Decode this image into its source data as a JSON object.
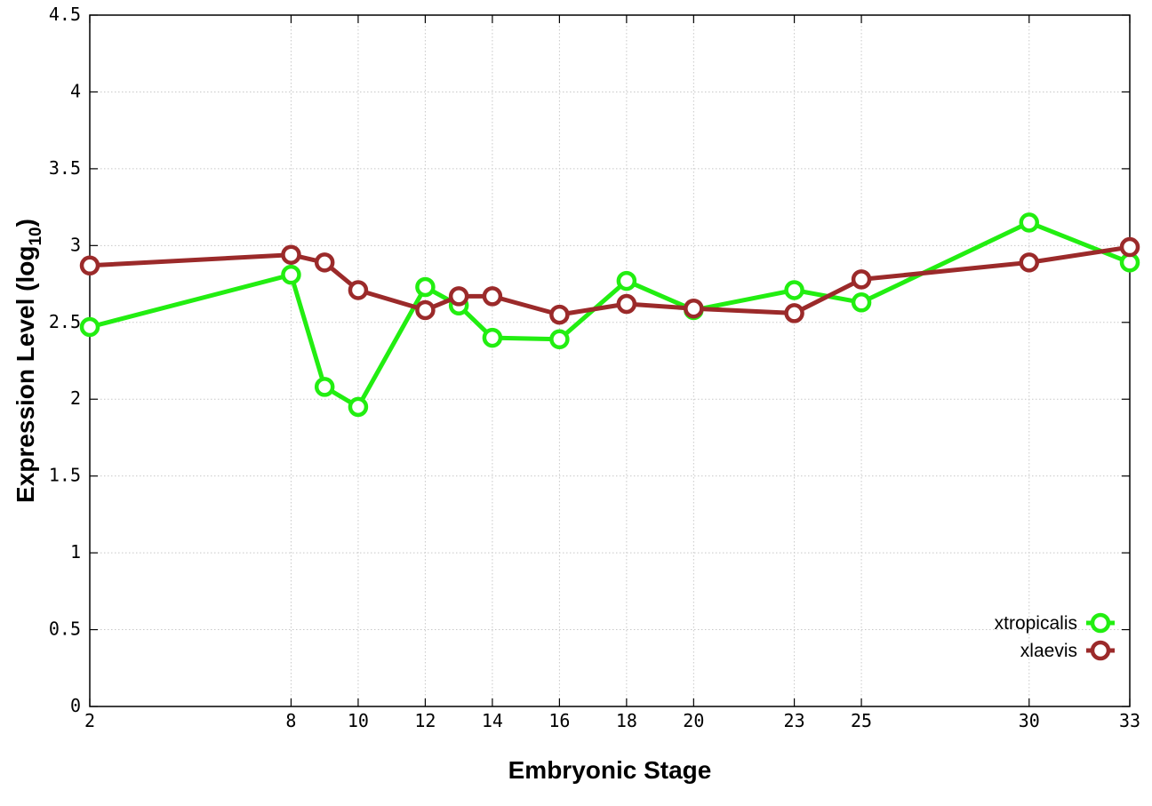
{
  "chart_data": {
    "type": "line",
    "xlabel": "Embryonic Stage",
    "ylabel": "Expression Level (log",
    "ylabel_sub": "10",
    "ylabel_close": ")",
    "x": [
      2,
      8,
      9,
      10,
      12,
      13,
      14,
      16,
      18,
      20,
      23,
      25,
      30,
      33
    ],
    "x_ticks": [
      "2",
      "8",
      "10",
      "12",
      "14",
      "16",
      "18",
      "20",
      "23",
      "25",
      "30",
      "33"
    ],
    "x_tick_values": [
      2,
      8,
      10,
      12,
      14,
      16,
      18,
      20,
      23,
      25,
      30,
      33
    ],
    "xlim": [
      2,
      33
    ],
    "ylim": [
      0,
      4.5
    ],
    "y_ticks": [
      "0",
      "0.5",
      "1",
      "1.5",
      "2",
      "2.5",
      "3",
      "3.5",
      "4",
      "4.5"
    ],
    "y_tick_values": [
      0,
      0.5,
      1,
      1.5,
      2,
      2.5,
      3,
      3.5,
      4,
      4.5
    ],
    "grid": true,
    "legend_position": "bottom-right",
    "series": [
      {
        "name": "xtropicalis",
        "color": "#22ee11",
        "values": [
          2.47,
          2.81,
          2.08,
          1.95,
          2.73,
          2.61,
          2.4,
          2.39,
          2.77,
          2.58,
          2.71,
          2.63,
          3.15,
          2.89
        ]
      },
      {
        "name": "xlaevis",
        "color": "#9b2a2a",
        "values": [
          2.87,
          2.94,
          2.89,
          2.71,
          2.58,
          2.67,
          2.67,
          2.55,
          2.62,
          2.59,
          2.56,
          2.78,
          2.89,
          2.99
        ]
      }
    ]
  }
}
